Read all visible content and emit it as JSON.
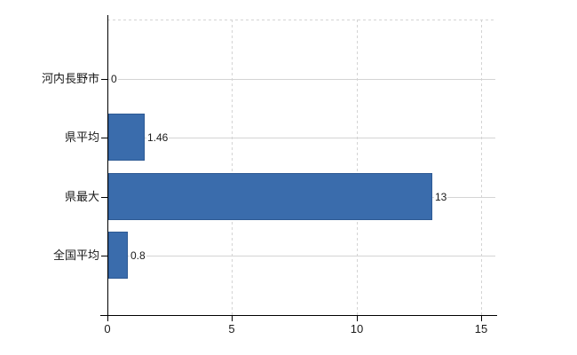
{
  "chart_data": {
    "type": "bar",
    "orientation": "horizontal",
    "title": "",
    "categories": [
      "河内長野市",
      "県平均",
      "県最大",
      "全国平均"
    ],
    "values": [
      0,
      1.46,
      13,
      0.8
    ],
    "value_labels": [
      "0",
      "1.46",
      "13",
      "0.8"
    ],
    "xlim": [
      0,
      15
    ],
    "x_ticks": [
      0,
      5,
      10,
      15
    ],
    "x_tick_labels": [
      "0",
      "5",
      "10",
      "15"
    ],
    "grid": true,
    "legend": "none",
    "colors": {
      "bar": "#3a6cac",
      "bar_border": "#2e5a94",
      "axis": "#000000",
      "gridline": "#d4d4d4",
      "text": "#1a1a1a",
      "background": "#ffffff"
    }
  }
}
